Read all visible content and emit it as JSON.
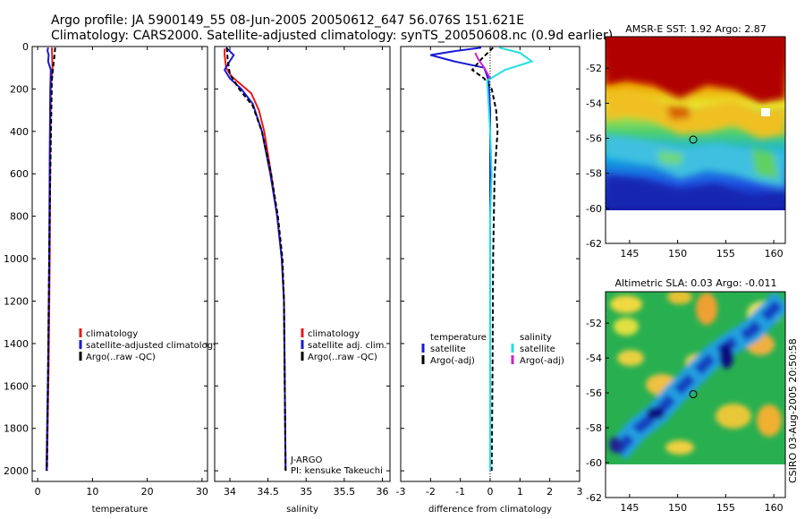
{
  "header": {
    "line1": "Argo profile: JA 5900149_55 08-Jun-2005 20050612_647 56.076S 151.621E",
    "line2": "Climatology: CARS2000. Satellite-adjusted climatology: synTS_20050608.nc (0.9d earlier)"
  },
  "footer": {
    "stamp": "CSIRO 03-Aug-2005 20:50:58"
  },
  "colors": {
    "red": "#e81818",
    "blue": "#1a1ad6",
    "black": "#000000",
    "cyan": "#22e0e0",
    "magenta": "#d020d0"
  },
  "chart_data": [
    {
      "type": "line",
      "id": "temperature",
      "xlabel": "temperature",
      "xlim": [
        -1,
        31
      ],
      "ylim": [
        0,
        2050
      ],
      "xticks": [
        0,
        10,
        20,
        30
      ],
      "xtick_labels": [
        "0",
        "10",
        "20",
        "30"
      ],
      "yticks": [
        0,
        200,
        400,
        600,
        800,
        1000,
        1200,
        1400,
        1600,
        1800,
        2000
      ],
      "ytick_labels": [
        "0",
        "200",
        "400",
        "600",
        "800",
        "1000",
        "1200",
        "1400",
        "1600",
        "1800",
        "2000"
      ],
      "legend": [
        {
          "label": "climatology",
          "color": "#e81818"
        },
        {
          "label": "satellite-adjusted climatology",
          "color": "#1a1ad6"
        },
        {
          "label": "Argo(..raw -QC)",
          "color": "#000000"
        }
      ],
      "series": [
        {
          "name": "climatology",
          "color": "#e81818",
          "dash": false,
          "points": [
            [
              2.6,
              5
            ],
            [
              2.7,
              100
            ],
            [
              2.4,
              200
            ],
            [
              2.3,
              500
            ],
            [
              2.2,
              1000
            ],
            [
              2.0,
              1500
            ],
            [
              1.7,
              2000
            ]
          ]
        },
        {
          "name": "satellite-adjusted climatology",
          "color": "#1a1ad6",
          "dash": false,
          "points": [
            [
              1.9,
              5
            ],
            [
              1.8,
              20
            ],
            [
              2.0,
              40
            ],
            [
              1.9,
              70
            ],
            [
              2.4,
              110
            ],
            [
              2.3,
              200
            ],
            [
              2.2,
              500
            ],
            [
              2.1,
              1000
            ],
            [
              1.9,
              1500
            ],
            [
              1.6,
              2000
            ]
          ]
        },
        {
          "name": "Argo(..raw -QC)",
          "color": "#000000",
          "dash": true,
          "points": [
            [
              3.2,
              5
            ],
            [
              3.0,
              60
            ],
            [
              2.8,
              100
            ],
            [
              2.6,
              160
            ],
            [
              2.5,
              300
            ],
            [
              2.3,
              600
            ],
            [
              2.1,
              1000
            ],
            [
              1.9,
              1500
            ],
            [
              1.7,
              2000
            ]
          ]
        }
      ]
    },
    {
      "type": "line",
      "id": "salinity",
      "xlabel": "salinity",
      "xlim": [
        33.8,
        36.1
      ],
      "ylim": [
        0,
        2050
      ],
      "xticks": [
        34,
        34.5,
        35,
        35.5,
        36
      ],
      "xtick_labels": [
        "34",
        "34.5",
        "35",
        "35.5",
        "36"
      ],
      "yticks": [
        0,
        200,
        400,
        600,
        800,
        1000,
        1200,
        1400,
        1600,
        1800,
        2000
      ],
      "legend": [
        {
          "label": "climatology",
          "color": "#e81818"
        },
        {
          "label": "satellite adj. clim.",
          "color": "#1a1ad6"
        },
        {
          "label": "Argo(..raw -QC)",
          "color": "#000000"
        }
      ],
      "annotations": [
        "J-ARGO",
        "PI: kensuke Takeuchi"
      ],
      "series": [
        {
          "name": "climatology",
          "color": "#e81818",
          "dash": false,
          "points": [
            [
              33.93,
              10
            ],
            [
              33.93,
              40
            ],
            [
              33.95,
              100
            ],
            [
              34.02,
              140
            ],
            [
              34.15,
              180
            ],
            [
              34.28,
              220
            ],
            [
              34.38,
              300
            ],
            [
              34.45,
              400
            ],
            [
              34.54,
              600
            ],
            [
              34.62,
              800
            ],
            [
              34.68,
              1000
            ],
            [
              34.71,
              1200
            ],
            [
              34.72,
              1600
            ],
            [
              34.73,
              2000
            ]
          ]
        },
        {
          "name": "satellite adj. clim.",
          "color": "#1a1ad6",
          "dash": false,
          "points": [
            [
              33.95,
              5
            ],
            [
              34.05,
              40
            ],
            [
              33.98,
              80
            ],
            [
              33.93,
              110
            ],
            [
              34.0,
              150
            ],
            [
              34.15,
              200
            ],
            [
              34.3,
              270
            ],
            [
              34.42,
              400
            ],
            [
              34.53,
              600
            ],
            [
              34.62,
              800
            ],
            [
              34.68,
              1000
            ],
            [
              34.71,
              1200
            ],
            [
              34.72,
              1600
            ],
            [
              34.73,
              2000
            ]
          ]
        },
        {
          "name": "Argo(..raw -QC)",
          "color": "#000000",
          "dash": true,
          "points": [
            [
              33.96,
              5
            ],
            [
              33.97,
              60
            ],
            [
              34.0,
              130
            ],
            [
              34.12,
              200
            ],
            [
              34.3,
              280
            ],
            [
              34.42,
              400
            ],
            [
              34.54,
              600
            ],
            [
              34.63,
              800
            ],
            [
              34.69,
              1000
            ],
            [
              34.71,
              1200
            ],
            [
              34.72,
              1600
            ],
            [
              34.73,
              2000
            ]
          ]
        }
      ]
    },
    {
      "type": "line",
      "id": "difference",
      "xlabel": "difference from climatology",
      "xlim": [
        -3,
        3
      ],
      "ylim": [
        0,
        2050
      ],
      "xticks": [
        -3,
        -2,
        -1,
        0,
        1,
        2,
        3
      ],
      "xtick_labels": [
        "-3",
        "-2",
        "-1",
        "0",
        "1",
        "2",
        "3"
      ],
      "yticks": [
        0,
        200,
        400,
        600,
        800,
        1000,
        1200,
        1400,
        1600,
        1800,
        2000
      ],
      "legend_left": [
        {
          "label": "temperature",
          "color": "none"
        },
        {
          "label": "satellite",
          "color": "#1a1ad6"
        },
        {
          "label": "Argo(-adj)",
          "color": "#000000"
        }
      ],
      "legend_right": [
        {
          "label": "salinity",
          "color": "none"
        },
        {
          "label": "satellite",
          "color": "#22e0e0"
        },
        {
          "label": "Argo(-adj)",
          "color": "#d020d0"
        }
      ],
      "series": [
        {
          "name": "temperature satellite",
          "color": "#1a1ad6",
          "dash": false,
          "points": [
            [
              -0.3,
              5
            ],
            [
              -1.1,
              20
            ],
            [
              -2.0,
              40
            ],
            [
              -1.2,
              70
            ],
            [
              -0.2,
              100
            ],
            [
              -0.05,
              160
            ],
            [
              0,
              300
            ],
            [
              0,
              2000
            ]
          ]
        },
        {
          "name": "temperature Argo(-adj)",
          "color": "#000000",
          "dash": true,
          "points": [
            [
              0.1,
              5
            ],
            [
              -0.3,
              60
            ],
            [
              -0.6,
              110
            ],
            [
              -0.2,
              150
            ],
            [
              0.05,
              200
            ],
            [
              0.2,
              300
            ],
            [
              0.25,
              400
            ],
            [
              0.15,
              600
            ],
            [
              0.1,
              1000
            ],
            [
              0.08,
              1500
            ],
            [
              0.05,
              2000
            ]
          ]
        },
        {
          "name": "salinity satellite",
          "color": "#22e0e0",
          "dash": false,
          "points": [
            [
              0.3,
              5
            ],
            [
              1.0,
              30
            ],
            [
              1.4,
              70
            ],
            [
              0.5,
              110
            ],
            [
              -0.1,
              160
            ],
            [
              0,
              400
            ],
            [
              0.05,
              600
            ],
            [
              0,
              800
            ],
            [
              0,
              2000
            ]
          ]
        },
        {
          "name": "salinity Argo(-adj)",
          "color": "#d020d0",
          "dash": false,
          "points": [
            [
              -0.5,
              30
            ],
            [
              -0.4,
              60
            ],
            [
              -0.2,
              100
            ],
            [
              0,
              150
            ]
          ]
        }
      ]
    },
    {
      "type": "heatmap",
      "id": "sst-map",
      "title": "AMSR-E SST: 1.92 Argo: 2.87",
      "xlim": [
        142.5,
        161.2
      ],
      "ylim": [
        -62,
        -50.2
      ],
      "xticks": [
        145,
        150,
        155,
        160
      ],
      "xtick_labels": [
        "145",
        "150",
        "155",
        "160"
      ],
      "yticks": [
        -52,
        -54,
        -56,
        -58,
        -60,
        -62
      ],
      "ytick_labels": [
        "-52",
        "-54",
        "-56",
        "-58",
        "-60",
        "-62"
      ],
      "data_south_limit": -60.2,
      "marker": {
        "lon": 151.621,
        "lat": -56.076
      }
    },
    {
      "type": "heatmap",
      "id": "sla-map",
      "title": "Altimetric SLA: 0.03 Argo: -0.011",
      "xlim": [
        142.5,
        161.2
      ],
      "ylim": [
        -62,
        -50.2
      ],
      "xticks": [
        145,
        150,
        155,
        160
      ],
      "xtick_labels": [
        "145",
        "150",
        "155",
        "160"
      ],
      "yticks": [
        -52,
        -54,
        -56,
        -58,
        -60,
        -62
      ],
      "ytick_labels": [
        "-52",
        "-54",
        "-56",
        "-58",
        "-60",
        "-62"
      ],
      "data_south_limit": -60.1,
      "marker": {
        "lon": 151.621,
        "lat": -56.076
      }
    }
  ]
}
